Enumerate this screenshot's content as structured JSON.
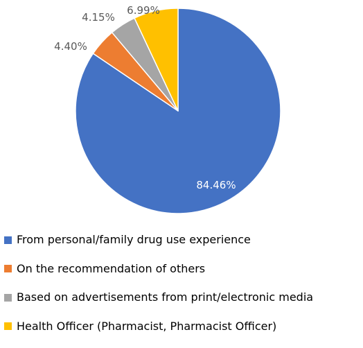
{
  "chart_data": {
    "type": "pie",
    "title": "",
    "start_angle_deg": 0,
    "direction": "clockwise",
    "legend_position": "bottom",
    "slices": [
      {
        "label": "From personal/family drug use experience",
        "value": 84.46,
        "display": "84.46%",
        "color": "#4472C4",
        "label_color": "#FFFFFF"
      },
      {
        "label": "On the recommendation of others",
        "value": 4.4,
        "display": "4.40%",
        "color": "#ED7D31",
        "label_color": "#595959"
      },
      {
        "label": "Based on advertisements from print/electronic media",
        "value": 4.15,
        "display": "4.15%",
        "color": "#A5A5A5",
        "label_color": "#595959"
      },
      {
        "label": "Health Officer (Pharmacist, Pharmacist Officer)",
        "value": 6.99,
        "display": "6.99%",
        "color": "#FFC000",
        "label_color": "#595959"
      }
    ]
  }
}
